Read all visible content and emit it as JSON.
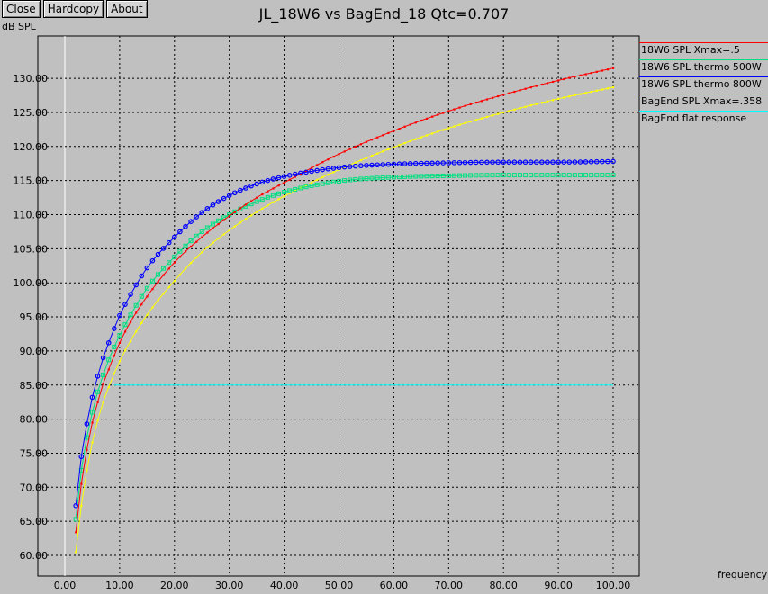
{
  "toolbar": {
    "close": "Close",
    "hardcopy": "Hardcopy",
    "about": "About"
  },
  "chart_data": {
    "type": "line",
    "title": "JL_18W6 vs BagEnd_18 Qtc=0.707",
    "ylabel": "dB SPL",
    "xlabel": "frequency",
    "xlim": [
      0,
      100
    ],
    "ylim": [
      60,
      130
    ],
    "xticks": [
      "0.00",
      "10.00",
      "20.00",
      "30.00",
      "40.00",
      "50.00",
      "60.00",
      "70.00",
      "80.00",
      "90.00",
      "100.00"
    ],
    "yticks": [
      "60.00",
      "65.00",
      "70.00",
      "75.00",
      "80.00",
      "85.00",
      "90.00",
      "95.00",
      "100.00",
      "105.00",
      "110.00",
      "115.00",
      "120.00",
      "125.00",
      "130.00"
    ],
    "grid": true,
    "legend_position": "right",
    "series": [
      {
        "name": "18W6 SPL Xmax=.5",
        "color": "#ff0000",
        "marker": "dot",
        "x": [
          2,
          3,
          4,
          5,
          6,
          7,
          8,
          10,
          12,
          15,
          20,
          25,
          30,
          35,
          40,
          50,
          60,
          70,
          80,
          90,
          100
        ],
        "y": [
          63.4,
          70.5,
          75.5,
          79.5,
          82.5,
          85.2,
          87.3,
          91.2,
          94.3,
          98.0,
          103.0,
          106.7,
          109.8,
          112.5,
          114.7,
          118.9,
          122.3,
          125.2,
          127.6,
          129.7,
          131.5
        ]
      },
      {
        "name": "18W6 SPL thermo 500W",
        "color": "#00e080",
        "marker": "box",
        "x": [
          2,
          3,
          4,
          5,
          6,
          7,
          8,
          10,
          12,
          15,
          20,
          25,
          30,
          35,
          40,
          50,
          60,
          70,
          80,
          90,
          100
        ],
        "y": [
          65.3,
          72.5,
          77.3,
          81.0,
          84.0,
          86.5,
          88.7,
          92.3,
          95.3,
          99.2,
          103.8,
          107.5,
          110.0,
          111.9,
          113.3,
          114.9,
          115.5,
          115.7,
          115.8,
          115.8,
          115.8
        ]
      },
      {
        "name": "18W6 SPL thermo 800W",
        "color": "#0000ff",
        "marker": "circle",
        "x": [
          2,
          3,
          4,
          5,
          6,
          7,
          8,
          10,
          12,
          15,
          20,
          25,
          30,
          35,
          40,
          50,
          60,
          70,
          80,
          90,
          100
        ],
        "y": [
          67.3,
          74.5,
          79.3,
          83.2,
          86.3,
          89.0,
          91.2,
          95.2,
          98.3,
          102.2,
          106.7,
          110.3,
          112.8,
          114.5,
          115.6,
          116.9,
          117.4,
          117.6,
          117.7,
          117.7,
          117.8
        ]
      },
      {
        "name": "BagEnd SPL Xmax=.358",
        "color": "#ffff00",
        "marker": "dot",
        "x": [
          2,
          3,
          4,
          5,
          6,
          7,
          8,
          10,
          12,
          15,
          20,
          25,
          30,
          35,
          40,
          50,
          60,
          70,
          80,
          90,
          100
        ],
        "y": [
          60.5,
          67.3,
          72.5,
          76.6,
          79.8,
          82.5,
          84.7,
          88.5,
          91.5,
          95.3,
          100.3,
          104.5,
          107.7,
          110.4,
          112.7,
          116.6,
          119.9,
          122.7,
          125.0,
          127.0,
          128.7
        ]
      },
      {
        "name": "BagEnd flat response",
        "color": "#00ffff",
        "marker": "none",
        "x": [
          9,
          100
        ],
        "y": [
          85.0,
          85.0
        ]
      }
    ]
  }
}
